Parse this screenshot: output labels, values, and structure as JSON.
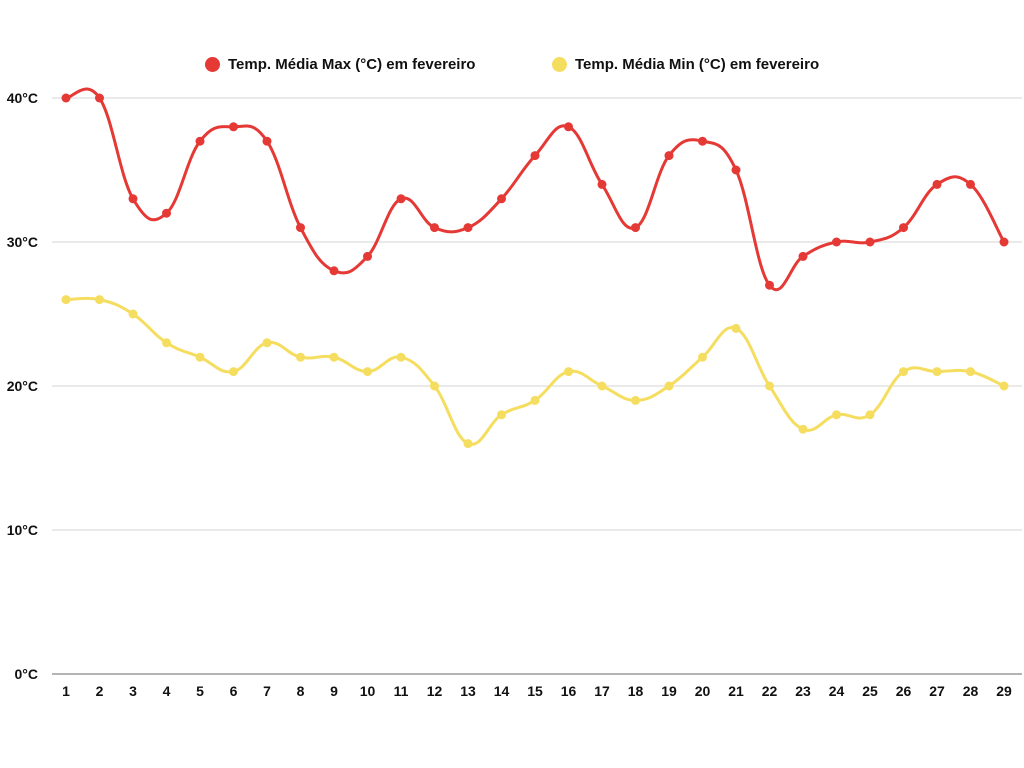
{
  "colors": {
    "max": "#e53935",
    "min": "#f5dd60",
    "grid": "#d6d6d6",
    "axis": "#888888"
  },
  "chart_data": {
    "type": "line",
    "title": "",
    "xlabel": "",
    "ylabel": "",
    "categories": [
      "1",
      "2",
      "3",
      "4",
      "5",
      "6",
      "7",
      "8",
      "9",
      "10",
      "11",
      "12",
      "13",
      "14",
      "15",
      "16",
      "17",
      "18",
      "19",
      "20",
      "21",
      "22",
      "23",
      "24",
      "25",
      "26",
      "27",
      "28",
      "29"
    ],
    "ylim": [
      0,
      40
    ],
    "yticks": [
      0,
      10,
      20,
      30,
      40
    ],
    "ytick_labels": [
      "0°C",
      "10°C",
      "20°C",
      "30°C",
      "40°C"
    ],
    "grid": true,
    "legend": "top-center",
    "series": [
      {
        "name": "Temp. Média Max (°C) em fevereiro",
        "color_key": "max",
        "values": [
          40,
          40,
          33,
          32,
          37,
          38,
          37,
          31,
          28,
          29,
          33,
          31,
          31,
          33,
          36,
          38,
          34,
          31,
          36,
          37,
          35,
          27,
          29,
          30,
          30,
          31,
          34,
          34,
          30
        ]
      },
      {
        "name": "Temp. Média Min (°C) em fevereiro",
        "color_key": "min",
        "values": [
          26,
          26,
          25,
          23,
          22,
          21,
          23,
          22,
          22,
          21,
          22,
          20,
          16,
          18,
          19,
          21,
          20,
          19,
          20,
          22,
          24,
          20,
          17,
          18,
          18,
          21,
          21,
          21,
          20
        ]
      }
    ]
  }
}
